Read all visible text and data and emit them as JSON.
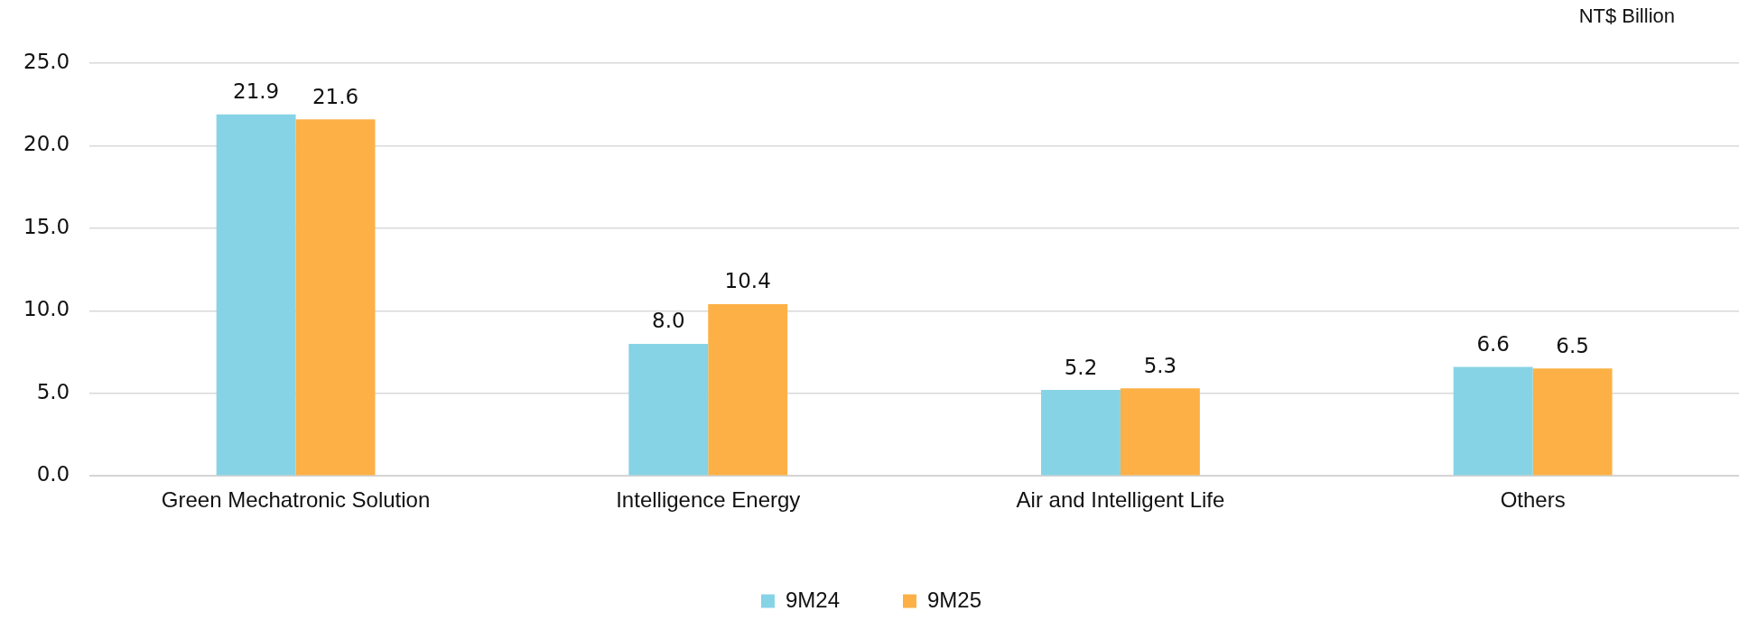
{
  "chart_data": {
    "type": "bar",
    "ylabel": "NT$ Billion",
    "categories": [
      "Green Mechatronic Solution",
      "Intelligence Energy",
      "Air and Intelligent Life",
      "Others"
    ],
    "series": [
      {
        "name": "9M24",
        "color": "#87d3e6",
        "values": [
          21.9,
          8.0,
          5.2,
          6.6
        ],
        "value_labels": [
          "21.9",
          "8.0",
          "5.2",
          "6.6"
        ]
      },
      {
        "name": "9M25",
        "color": "#fdb045",
        "values": [
          21.6,
          10.4,
          5.3,
          6.5
        ],
        "value_labels": [
          "21.6",
          "10.4",
          "5.3",
          "6.5"
        ]
      }
    ],
    "ylim": [
      0,
      25
    ],
    "yticks": [
      {
        "value": 0,
        "label": "0.0"
      },
      {
        "value": 5,
        "label": "5.0"
      },
      {
        "value": 10,
        "label": "10.0"
      },
      {
        "value": 15,
        "label": "15.0"
      },
      {
        "value": 20,
        "label": "20.0"
      },
      {
        "value": 25,
        "label": "25.0"
      }
    ],
    "grid": "y",
    "legend": "bottom"
  }
}
